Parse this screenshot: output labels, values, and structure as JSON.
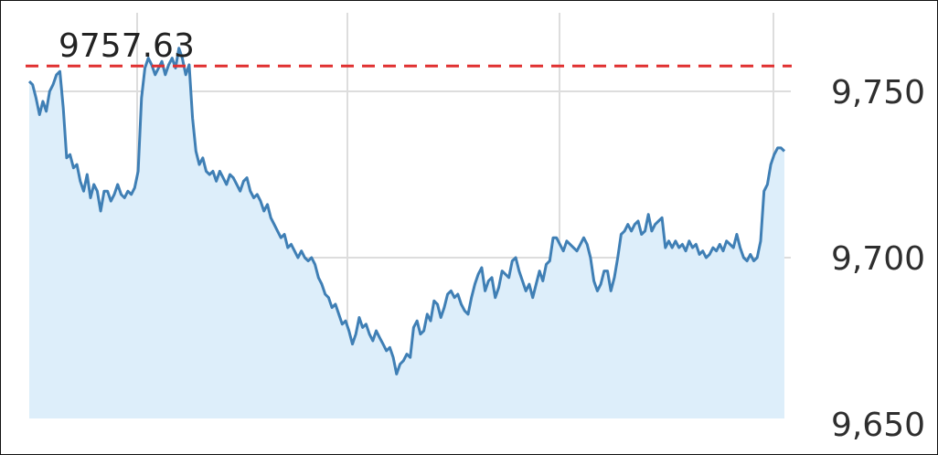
{
  "chart_data": {
    "type": "area",
    "title": "",
    "xlabel": "",
    "ylabel": "",
    "ylim": [
      9643,
      9762
    ],
    "y_ticks": [
      9750,
      9700,
      9650
    ],
    "y_tick_labels": [
      "9,750",
      "9,700",
      "9,650"
    ],
    "grid": true,
    "reference_line": {
      "value": 9757.63,
      "label": "9757.63",
      "color": "#e03030",
      "style": "dashed"
    },
    "colors": {
      "line": "#3f7fb5",
      "fill": "#ddeefa",
      "grid": "#dddddd"
    },
    "series": [
      {
        "values": [
          9753,
          9752,
          9748,
          9743,
          9747,
          9744,
          9750,
          9752,
          9755,
          9756,
          9745,
          9730,
          9731,
          9727,
          9728,
          9723,
          9720,
          9725,
          9718,
          9722,
          9720,
          9714,
          9720,
          9720,
          9717,
          9719,
          9722,
          9719,
          9718,
          9720,
          9719,
          9721,
          9726,
          9748,
          9757,
          9760,
          9758,
          9755,
          9757,
          9759,
          9755,
          9758,
          9760,
          9757,
          9763,
          9760,
          9755,
          9758,
          9742,
          9732,
          9728,
          9730,
          9726,
          9725,
          9726,
          9723,
          9726,
          9724,
          9722,
          9725,
          9724,
          9722,
          9720,
          9723,
          9724,
          9720,
          9718,
          9719,
          9717,
          9714,
          9716,
          9712,
          9710,
          9708,
          9706,
          9707,
          9703,
          9704,
          9702,
          9700,
          9702,
          9700,
          9699,
          9700,
          9698,
          9694,
          9692,
          9689,
          9688,
          9685,
          9686,
          9683,
          9680,
          9681,
          9678,
          9674,
          9677,
          9682,
          9679,
          9680,
          9677,
          9675,
          9678,
          9676,
          9674,
          9672,
          9673,
          9670,
          9665,
          9668,
          9669,
          9671,
          9670,
          9679,
          9681,
          9677,
          9678,
          9683,
          9681,
          9687,
          9686,
          9682,
          9685,
          9689,
          9690,
          9688,
          9689,
          9686,
          9684,
          9683,
          9688,
          9692,
          9695,
          9697,
          9690,
          9693,
          9694,
          9688,
          9691,
          9696,
          9695,
          9694,
          9699,
          9700,
          9696,
          9693,
          9690,
          9692,
          9688,
          9692,
          9696,
          9693,
          9698,
          9699,
          9706,
          9706,
          9704,
          9702,
          9705,
          9704,
          9703,
          9702,
          9704,
          9706,
          9704,
          9700,
          9693,
          9690,
          9692,
          9696,
          9696,
          9690,
          9694,
          9700,
          9707,
          9708,
          9710,
          9708,
          9710,
          9711,
          9707,
          9708,
          9713,
          9708,
          9710,
          9711,
          9712,
          9703,
          9705,
          9703,
          9705,
          9703,
          9704,
          9702,
          9705,
          9703,
          9704,
          9701,
          9702,
          9700,
          9701,
          9703,
          9702,
          9704,
          9702,
          9705,
          9704,
          9703,
          9707,
          9703,
          9700,
          9699,
          9701,
          9699,
          9700,
          9705,
          9720,
          9722,
          9728,
          9731,
          9733,
          9733,
          9732
        ]
      }
    ]
  }
}
